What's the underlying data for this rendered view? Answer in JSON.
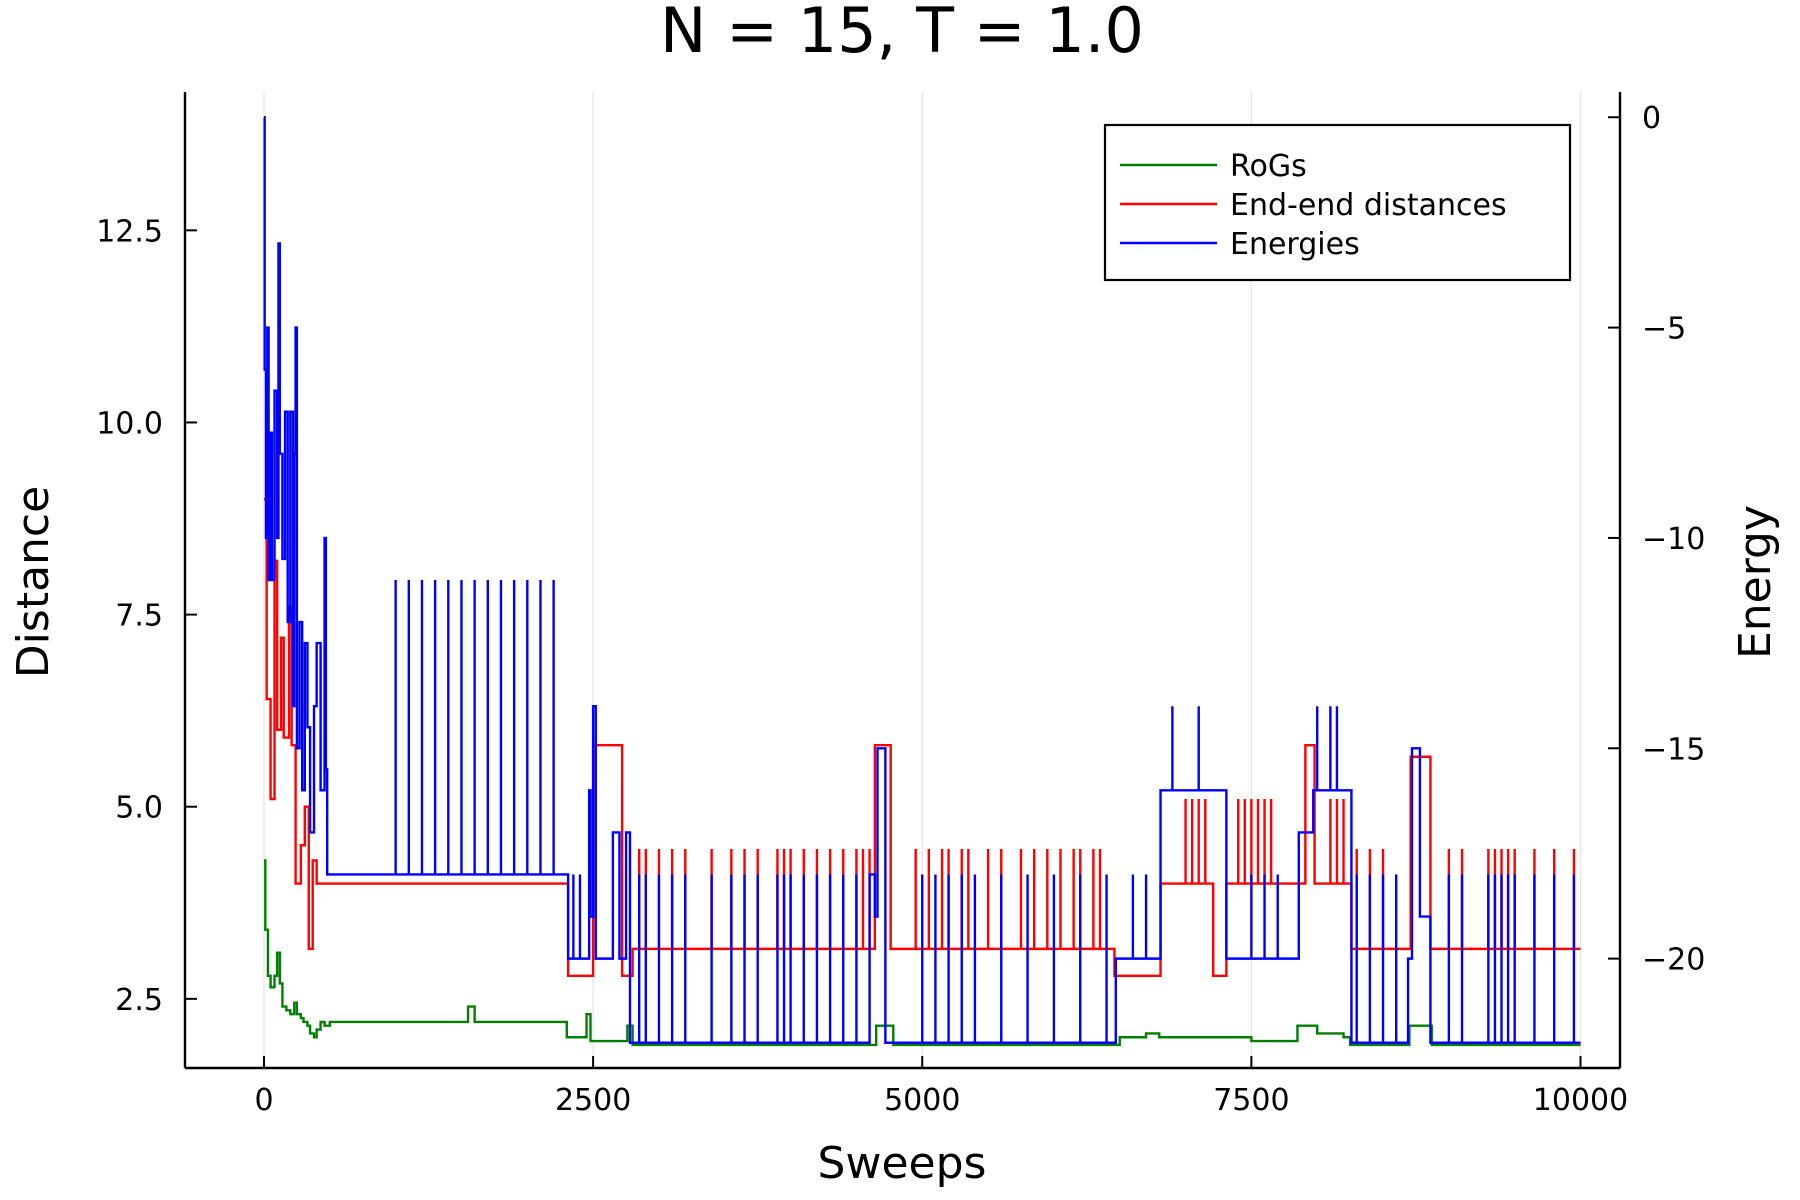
{
  "chart_data": {
    "type": "line",
    "title": "N = 15, T = 1.0",
    "xlabel": "Sweeps",
    "ylabel": "Distance",
    "y2label": "Energy",
    "xlim": [
      -600,
      10300
    ],
    "ylim": [
      1.6,
      14.3
    ],
    "y2lim": [
      -22.6,
      0.6
    ],
    "xticks": [
      0,
      2500,
      5000,
      7500,
      10000
    ],
    "xtick_labels": [
      "0",
      "2500",
      "5000",
      "7500",
      "10000"
    ],
    "yticks": [
      2.5,
      5.0,
      7.5,
      10.0,
      12.5
    ],
    "ytick_labels": [
      "2.5",
      "5.0",
      "7.5",
      "10.0",
      "12.5"
    ],
    "y2ticks": [
      0,
      -5,
      -10,
      -15,
      -20
    ],
    "y2tick_labels": [
      "0",
      "−5",
      "−10",
      "−15",
      "−20"
    ],
    "grid": true,
    "legend_position": "top-right",
    "series": [
      {
        "name": "RoGs",
        "color": "#008000",
        "axis": "left",
        "points": [
          [
            0,
            4.3
          ],
          [
            10,
            3.4
          ],
          [
            30,
            2.8
          ],
          [
            50,
            2.65
          ],
          [
            80,
            2.8
          ],
          [
            100,
            3.1
          ],
          [
            120,
            2.7
          ],
          [
            140,
            2.4
          ],
          [
            170,
            2.35
          ],
          [
            200,
            2.3
          ],
          [
            230,
            2.45
          ],
          [
            250,
            2.3
          ],
          [
            280,
            2.25
          ],
          [
            300,
            2.2
          ],
          [
            330,
            2.15
          ],
          [
            350,
            2.05
          ],
          [
            380,
            2.0
          ],
          [
            400,
            2.1
          ],
          [
            430,
            2.2
          ],
          [
            460,
            2.15
          ],
          [
            500,
            2.2
          ],
          [
            700,
            2.2
          ],
          [
            900,
            2.2
          ],
          [
            1100,
            2.2
          ],
          [
            1300,
            2.2
          ],
          [
            1500,
            2.2
          ],
          [
            1550,
            2.4
          ],
          [
            1600,
            2.2
          ],
          [
            1800,
            2.2
          ],
          [
            2000,
            2.2
          ],
          [
            2200,
            2.2
          ],
          [
            2280,
            2.2
          ],
          [
            2300,
            2.0
          ],
          [
            2400,
            2.0
          ],
          [
            2450,
            2.3
          ],
          [
            2480,
            1.95
          ],
          [
            2700,
            1.95
          ],
          [
            2760,
            2.15
          ],
          [
            2800,
            1.9
          ],
          [
            4600,
            1.9
          ],
          [
            4650,
            2.15
          ],
          [
            4760,
            2.15
          ],
          [
            4780,
            1.9
          ],
          [
            6450,
            1.9
          ],
          [
            6500,
            2.0
          ],
          [
            6700,
            2.05
          ],
          [
            6800,
            2.0
          ],
          [
            7000,
            2.0
          ],
          [
            7200,
            2.0
          ],
          [
            7400,
            2.0
          ],
          [
            7500,
            1.95
          ],
          [
            7800,
            1.95
          ],
          [
            7850,
            2.15
          ],
          [
            7950,
            2.15
          ],
          [
            8000,
            2.05
          ],
          [
            8200,
            2.0
          ],
          [
            8250,
            1.9
          ],
          [
            8680,
            1.9
          ],
          [
            8700,
            2.15
          ],
          [
            8850,
            2.15
          ],
          [
            8870,
            1.9
          ],
          [
            10000,
            1.9
          ]
        ]
      },
      {
        "name": "End-end distances",
        "color": "#ff0000",
        "axis": "left",
        "points": [
          [
            0,
            9.0
          ],
          [
            20,
            6.4
          ],
          [
            50,
            5.1
          ],
          [
            80,
            8.2
          ],
          [
            100,
            6.0
          ],
          [
            130,
            7.2
          ],
          [
            150,
            5.9
          ],
          [
            190,
            7.6
          ],
          [
            210,
            5.8
          ],
          [
            240,
            4.0
          ],
          [
            280,
            4.5
          ],
          [
            310,
            5.0
          ],
          [
            340,
            3.15
          ],
          [
            370,
            4.3
          ],
          [
            400,
            4.0
          ],
          [
            450,
            4.0
          ],
          [
            470,
            4.0
          ],
          [
            2300,
            4.0
          ],
          [
            2310,
            2.8
          ],
          [
            2480,
            2.8
          ],
          [
            2500,
            5.8
          ],
          [
            2700,
            5.8
          ],
          [
            2720,
            2.8
          ],
          [
            2780,
            2.8
          ],
          [
            2800,
            3.15
          ],
          [
            4620,
            3.15
          ],
          [
            4640,
            5.8
          ],
          [
            4700,
            5.8
          ],
          [
            4760,
            3.15
          ],
          [
            6450,
            3.15
          ],
          [
            6460,
            2.8
          ],
          [
            6800,
            2.8
          ],
          [
            6810,
            4.0
          ],
          [
            7200,
            4.0
          ],
          [
            7210,
            2.8
          ],
          [
            7300,
            2.8
          ],
          [
            7310,
            4.0
          ],
          [
            7900,
            4.0
          ],
          [
            7910,
            5.8
          ],
          [
            7970,
            5.8
          ],
          [
            7980,
            4.0
          ],
          [
            8250,
            4.0
          ],
          [
            8260,
            3.15
          ],
          [
            8700,
            3.15
          ],
          [
            8710,
            5.65
          ],
          [
            8850,
            5.65
          ],
          [
            8860,
            3.15
          ],
          [
            10000,
            3.15
          ]
        ],
        "spikes": [
          2850,
          2900,
          3000,
          3100,
          3200,
          3400,
          3550,
          3650,
          3750,
          3900,
          3950,
          4000,
          4100,
          4200,
          4300,
          4400,
          4500,
          4550,
          4600,
          4950,
          5050,
          5150,
          5200,
          5300,
          5350,
          5500,
          5600,
          5750,
          5850,
          5950,
          6050,
          6150,
          6200,
          6300,
          6350,
          7000,
          7050,
          7100,
          7150,
          7400,
          7450,
          7500,
          7550,
          7600,
          7650,
          8100,
          8150,
          8200,
          8300,
          8400,
          8500,
          9000,
          9100,
          9300,
          9350,
          9400,
          9450,
          9500,
          9650,
          9800,
          9950
        ]
      },
      {
        "name": "Energies",
        "color": "#0000ff",
        "axis": "right",
        "points": [
          [
            0,
            0
          ],
          [
            5,
            -6
          ],
          [
            15,
            -10
          ],
          [
            25,
            -5
          ],
          [
            35,
            -11
          ],
          [
            50,
            -7.5
          ],
          [
            60,
            -11
          ],
          [
            80,
            -6.5
          ],
          [
            100,
            -10
          ],
          [
            110,
            -3
          ],
          [
            120,
            -8
          ],
          [
            140,
            -10.5
          ],
          [
            160,
            -7
          ],
          [
            180,
            -12
          ],
          [
            200,
            -7
          ],
          [
            220,
            -14
          ],
          [
            230,
            -8
          ],
          [
            240,
            -5
          ],
          [
            250,
            -15
          ],
          [
            270,
            -12
          ],
          [
            290,
            -16
          ],
          [
            310,
            -12.5
          ],
          [
            330,
            -14.5
          ],
          [
            350,
            -17
          ],
          [
            380,
            -14
          ],
          [
            400,
            -12.5
          ],
          [
            430,
            -16
          ],
          [
            460,
            -10
          ],
          [
            470,
            -15.5
          ],
          [
            480,
            -18
          ],
          [
            500,
            -18
          ],
          [
            2300,
            -18
          ],
          [
            2310,
            -20
          ],
          [
            2460,
            -20
          ],
          [
            2470,
            -16
          ],
          [
            2480,
            -19
          ],
          [
            2500,
            -14
          ],
          [
            2520,
            -20
          ],
          [
            2600,
            -20
          ],
          [
            2650,
            -17
          ],
          [
            2700,
            -20
          ],
          [
            2750,
            -17
          ],
          [
            2780,
            -22
          ],
          [
            4580,
            -22
          ],
          [
            4600,
            -18
          ],
          [
            4640,
            -19
          ],
          [
            4660,
            -15
          ],
          [
            4700,
            -15
          ],
          [
            4720,
            -22
          ],
          [
            6450,
            -22
          ],
          [
            6470,
            -20
          ],
          [
            6800,
            -20
          ],
          [
            6810,
            -16
          ],
          [
            7300,
            -16
          ],
          [
            7310,
            -20
          ],
          [
            7850,
            -20
          ],
          [
            7860,
            -17
          ],
          [
            7960,
            -17
          ],
          [
            7970,
            -16
          ],
          [
            8250,
            -16
          ],
          [
            8260,
            -22
          ],
          [
            8680,
            -22
          ],
          [
            8690,
            -20
          ],
          [
            8720,
            -15
          ],
          [
            8780,
            -19
          ],
          [
            8850,
            -19
          ],
          [
            8860,
            -22
          ],
          [
            10000,
            -22
          ]
        ],
        "spikes": [
          1000,
          1100,
          1200,
          1300,
          1400,
          1500,
          1600,
          1700,
          1800,
          1900,
          2000,
          2100,
          2200,
          2350,
          2400,
          2850,
          2900,
          3000,
          3100,
          3200,
          3400,
          3550,
          3650,
          3750,
          3900,
          3950,
          4000,
          4100,
          4200,
          4300,
          4400,
          4500,
          5000,
          5100,
          5200,
          5300,
          5400,
          5600,
          5800,
          6000,
          6200,
          6400,
          6600,
          6700,
          6900,
          7100,
          7500,
          7600,
          7700,
          8000,
          8100,
          8150,
          8300,
          8400,
          8500,
          8600,
          9000,
          9100,
          9300,
          9350,
          9400,
          9450,
          9500,
          9650,
          9800,
          9950
        ]
      }
    ]
  }
}
